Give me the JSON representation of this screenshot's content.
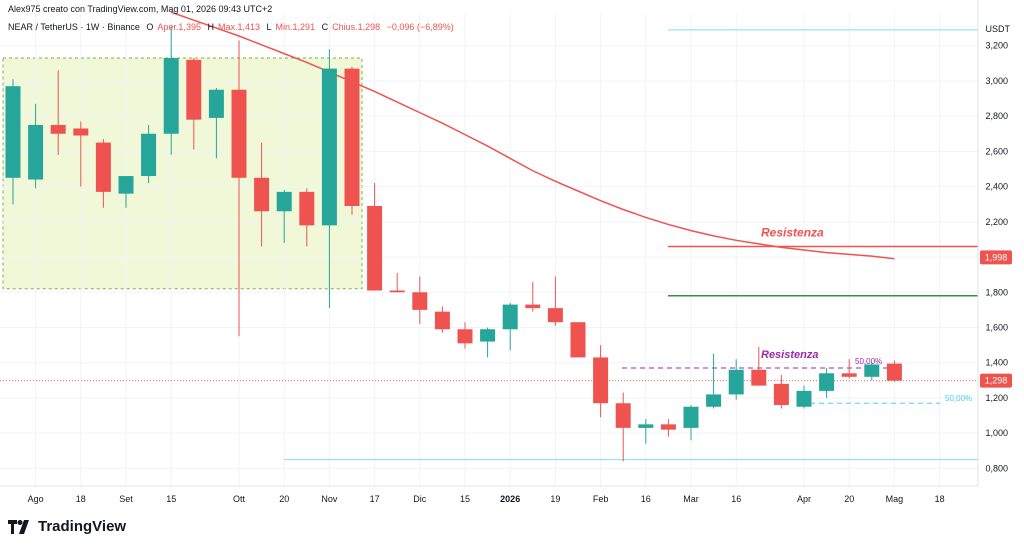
{
  "header": {
    "creator": "Alex975 creato con TradingView.com, Mag 01, 2026 09:43 UTC+2",
    "symbol": "NEAR / TetherUS · 1W · Binance",
    "open_label": "O",
    "open": "Aper.1,395",
    "high_label": "H",
    "high": "Max.1,413",
    "low_label": "L",
    "low": "Min.1,291",
    "close_label": "C",
    "close": "Chius.1,298",
    "change": "−0,096 (−6,89%)"
  },
  "brand": "TradingView",
  "colors": {
    "up": "#26a69a",
    "down": "#ef5350",
    "ma": "#ef5350",
    "zone_fill": "#f1f8d8",
    "resistance_high": "#ef5350",
    "resistance_low": "#9c27b0",
    "support_green": "#388e3c",
    "cyan_line": "#80deea",
    "fib": "#4dd0e1"
  },
  "chart_data": {
    "type": "candlestick",
    "title": "NEAR / TetherUS · 1W · Binance",
    "y_axis_unit": "USDT",
    "ylim": [
      700,
      3380
    ],
    "y_ticks": [
      "0,800",
      "1,000",
      "1,200",
      "1,400",
      "1,600",
      "1,800",
      "2,000",
      "2,200",
      "2,400",
      "2,600",
      "2,800",
      "3,000",
      "3,200"
    ],
    "x_ticks": [
      "Ago",
      "18",
      "Set",
      "15",
      "Ott",
      "20",
      "Nov",
      "17",
      "Dic",
      "15",
      "2026",
      "19",
      "Feb",
      "16",
      "Mar",
      "16",
      "Apr",
      "20",
      "Mag",
      "18"
    ],
    "x_tick_weeks": [
      1,
      3,
      5,
      7,
      10,
      12,
      14,
      16,
      18,
      20,
      22,
      24,
      26,
      28,
      30,
      32,
      35,
      37,
      39,
      41
    ],
    "candles": [
      {
        "o": 2450,
        "h": 3010,
        "l": 2300,
        "c": 2970
      },
      {
        "o": 2440,
        "h": 2870,
        "l": 2390,
        "c": 2750
      },
      {
        "o": 2750,
        "h": 3060,
        "l": 2580,
        "c": 2700
      },
      {
        "o": 2730,
        "h": 2770,
        "l": 2400,
        "c": 2690
      },
      {
        "o": 2650,
        "h": 2670,
        "l": 2280,
        "c": 2370
      },
      {
        "o": 2360,
        "h": 2440,
        "l": 2280,
        "c": 2460
      },
      {
        "o": 2460,
        "h": 2750,
        "l": 2420,
        "c": 2700
      },
      {
        "o": 2700,
        "h": 3310,
        "l": 2580,
        "c": 3130
      },
      {
        "o": 3120,
        "h": 3130,
        "l": 2610,
        "c": 2780
      },
      {
        "o": 2790,
        "h": 2960,
        "l": 2560,
        "c": 2950
      },
      {
        "o": 2950,
        "h": 3230,
        "l": 1550,
        "c": 2450
      },
      {
        "o": 2450,
        "h": 2650,
        "l": 2060,
        "c": 2260
      },
      {
        "o": 2260,
        "h": 2380,
        "l": 2080,
        "c": 2370
      },
      {
        "o": 2370,
        "h": 2390,
        "l": 2060,
        "c": 2180
      },
      {
        "o": 2180,
        "h": 3180,
        "l": 1710,
        "c": 3070
      },
      {
        "o": 3070,
        "h": 3080,
        "l": 2240,
        "c": 2290
      },
      {
        "o": 2290,
        "h": 2420,
        "l": 1810,
        "c": 1810
      },
      {
        "o": 1810,
        "h": 1910,
        "l": 1800,
        "c": 1800
      },
      {
        "o": 1800,
        "h": 1890,
        "l": 1620,
        "c": 1700
      },
      {
        "o": 1690,
        "h": 1720,
        "l": 1570,
        "c": 1590
      },
      {
        "o": 1590,
        "h": 1630,
        "l": 1480,
        "c": 1510
      },
      {
        "o": 1520,
        "h": 1600,
        "l": 1430,
        "c": 1590
      },
      {
        "o": 1590,
        "h": 1740,
        "l": 1470,
        "c": 1730
      },
      {
        "o": 1730,
        "h": 1860,
        "l": 1690,
        "c": 1710
      },
      {
        "o": 1710,
        "h": 1890,
        "l": 1610,
        "c": 1630
      },
      {
        "o": 1630,
        "h": 1630,
        "l": 1430,
        "c": 1430
      },
      {
        "o": 1430,
        "h": 1500,
        "l": 1090,
        "c": 1170
      },
      {
        "o": 1170,
        "h": 1230,
        "l": 840,
        "c": 1030
      },
      {
        "o": 1030,
        "h": 1080,
        "l": 940,
        "c": 1050
      },
      {
        "o": 1050,
        "h": 1080,
        "l": 980,
        "c": 1020
      },
      {
        "o": 1030,
        "h": 1160,
        "l": 960,
        "c": 1150
      },
      {
        "o": 1150,
        "h": 1450,
        "l": 1140,
        "c": 1220
      },
      {
        "o": 1220,
        "h": 1420,
        "l": 1190,
        "c": 1360
      },
      {
        "o": 1360,
        "h": 1490,
        "l": 1270,
        "c": 1270
      },
      {
        "o": 1280,
        "h": 1330,
        "l": 1140,
        "c": 1160
      },
      {
        "o": 1150,
        "h": 1270,
        "l": 1140,
        "c": 1240
      },
      {
        "o": 1240,
        "h": 1370,
        "l": 1200,
        "c": 1340
      },
      {
        "o": 1340,
        "h": 1420,
        "l": 1310,
        "c": 1320
      },
      {
        "o": 1320,
        "h": 1400,
        "l": 1300,
        "c": 1390
      },
      {
        "o": 1395,
        "h": 1413,
        "l": 1291,
        "c": 1298
      }
    ],
    "moving_average": [
      3390,
      3345,
      3300,
      3255,
      3205,
      3155,
      3105,
      3050,
      2995,
      2940,
      2880,
      2820,
      2760,
      2695,
      2630,
      2560,
      2490,
      2430,
      2375,
      2320,
      2270,
      2225,
      2185,
      2150,
      2120,
      2095,
      2075,
      2055,
      2040,
      2025,
      2015,
      2005,
      1990
    ],
    "moving_average_start_week": 7,
    "last_ma_value_label": "1,998",
    "last_price_label": "1,298",
    "last_price": 1298,
    "annotations": [
      {
        "text": "Resistenza",
        "price": 2060
      },
      {
        "text": "Resistenza",
        "price": 1370
      },
      {
        "text": "50,00%",
        "price": 1410
      },
      {
        "text": "50,00%",
        "price": 1200
      }
    ],
    "horizontal_levels": [
      {
        "price": 3290
      },
      {
        "price": 2060
      },
      {
        "price": 1780
      },
      {
        "price": 1370
      },
      {
        "price": 1170
      },
      {
        "price": 850
      }
    ],
    "shaded_zone": {
      "price_top": 3130,
      "price_bottom": 1820,
      "week_start": 0,
      "week_end": 15
    }
  }
}
